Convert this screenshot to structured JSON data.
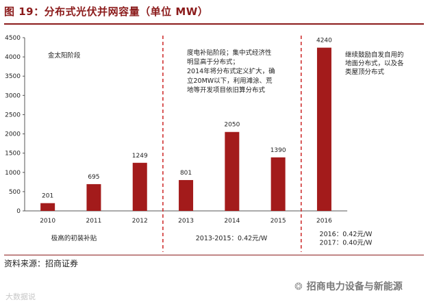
{
  "header": {
    "title": "图 19：分布式光伏并网容量（单位 MW）"
  },
  "footer": {
    "source": "资料来源：招商证券",
    "watermark": "招商电力设备与新能源",
    "corner_mark": "大数据说"
  },
  "colors": {
    "bar": "#a31b1b",
    "divider": "#cc2222",
    "title": "#8b1a1a"
  },
  "chart_data": {
    "type": "bar",
    "title": "分布式光伏并网容量（单位 MW）",
    "categories": [
      "2010",
      "2011",
      "2012",
      "2013",
      "2014",
      "2015",
      "2016"
    ],
    "values": [
      201,
      695,
      1249,
      801,
      2050,
      1390,
      4240
    ],
    "ylim": [
      0,
      4500
    ],
    "yticks": [
      0,
      500,
      1000,
      1500,
      2000,
      2500,
      3000,
      3500,
      4000,
      4500
    ],
    "xlabel": "",
    "ylabel": "",
    "grid": false,
    "annotations": {
      "phase1": "金太阳阶段",
      "phase2": [
        "度电补贴阶段；集中式经济性",
        "明显高于分布式；",
        "2014年将分布式定义扩大，确",
        "立20MW以下，利用滩涂、荒",
        "地等开发项目依旧算分布式"
      ],
      "phase3": [
        "继续鼓励自发自用的",
        "地面分布式，以及各",
        "类屋顶分布式"
      ]
    },
    "bottom_notes": {
      "phase1": "极高的初装补贴",
      "phase2": "2013-2015：0.42元/W",
      "phase3": [
        "2016：0.42元/W",
        "2017：0.40元/W"
      ]
    }
  }
}
